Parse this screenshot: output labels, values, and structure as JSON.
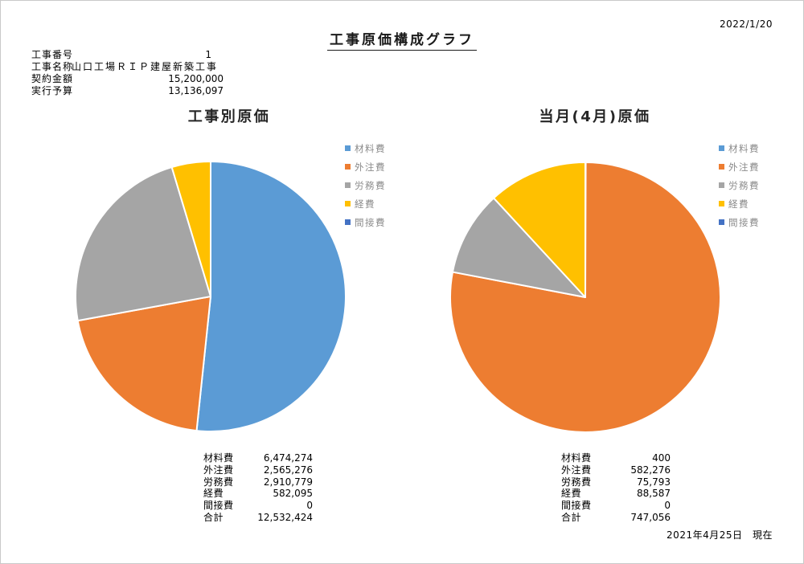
{
  "header": {
    "title": "工事原価構成グラフ",
    "report_date": "2022/1/20",
    "fields": [
      {
        "label": "工事番号",
        "value": "1"
      },
      {
        "label": "工事名称",
        "value": "山口工場ＲＩＰ建屋新築工事"
      },
      {
        "label": "契約金額",
        "value": "15,200,000"
      },
      {
        "label": "実行予算",
        "value": "13,136,097"
      }
    ]
  },
  "chart_data": [
    {
      "type": "pie",
      "title": "工事別原価",
      "categories": [
        "材料費",
        "外注費",
        "労務費",
        "経費",
        "間接費"
      ],
      "values": [
        6474274,
        2565276,
        2910779,
        582095,
        0
      ],
      "colors": [
        "#5B9BD5",
        "#ED7D31",
        "#A5A5A5",
        "#FFC000",
        "#4472C4"
      ],
      "total_label": "合計",
      "total": 12532424,
      "legend_position": "right",
      "start_angle": "top",
      "direction": "clockwise"
    },
    {
      "type": "pie",
      "title": "当月(4月)原価",
      "categories": [
        "材料費",
        "外注費",
        "労務費",
        "経費",
        "間接費"
      ],
      "values": [
        400,
        582276,
        75793,
        88587,
        0
      ],
      "colors": [
        "#5B9BD5",
        "#ED7D31",
        "#A5A5A5",
        "#FFC000",
        "#4472C4"
      ],
      "total_label": "合計",
      "total": 747056,
      "legend_position": "right",
      "start_angle": "top",
      "direction": "clockwise"
    }
  ],
  "footer": {
    "as_of": "2021年4月25日　現在"
  }
}
